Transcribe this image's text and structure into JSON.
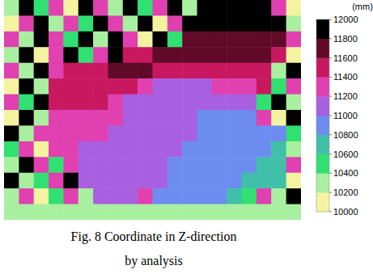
{
  "chart_data": {
    "type": "heatmap",
    "title": "Fig. 8 Coordinate in Z-direction",
    "subtitle": "by analysis",
    "colorbar_label": "(mm)",
    "colorbar_range": [
      10000,
      12000
    ],
    "colorbar_ticks": [
      10000,
      10200,
      10400,
      10600,
      10800,
      11000,
      11200,
      11400,
      11600,
      11800,
      12000
    ],
    "colors": [
      "#f4f4a0",
      "#a8f0a0",
      "#30e070",
      "#40c0a8",
      "#6c8cf0",
      "#a860e0",
      "#e040b0",
      "#c81860",
      "#600a28",
      "#000000"
    ],
    "cells": [
      [
        10300,
        11900,
        10500,
        11300,
        10100,
        11900,
        11300,
        10300,
        11900,
        10500,
        11300,
        11900,
        10300,
        11900,
        11900,
        11900,
        11900,
        11900,
        11300,
        10100
      ],
      [
        10100,
        11300,
        11900,
        10300,
        11300,
        10500,
        11900,
        11300,
        10300,
        11900,
        10100,
        11300,
        11900,
        11900,
        11900,
        11900,
        11900,
        11900,
        11900,
        10300
      ],
      [
        11300,
        10300,
        11900,
        11300,
        10500,
        11900,
        10300,
        11900,
        11300,
        10100,
        11900,
        10500,
        11700,
        11700,
        11700,
        11700,
        11700,
        11700,
        11700,
        11300
      ],
      [
        10300,
        11900,
        10100,
        11300,
        11900,
        10500,
        11300,
        11900,
        11500,
        11500,
        11700,
        11700,
        11700,
        11700,
        11700,
        11700,
        11700,
        11700,
        11500,
        10100
      ],
      [
        11300,
        10300,
        11900,
        11300,
        11500,
        11500,
        11500,
        11700,
        11700,
        11700,
        11500,
        11500,
        11500,
        11500,
        11500,
        11500,
        11500,
        11500,
        10300,
        11900
      ],
      [
        10100,
        11900,
        10300,
        11500,
        11500,
        11500,
        11500,
        11500,
        11500,
        11300,
        11100,
        11100,
        11100,
        11100,
        11300,
        11300,
        11300,
        11500,
        10500,
        11300
      ],
      [
        11300,
        10500,
        11900,
        11500,
        11500,
        11500,
        11500,
        11300,
        11100,
        11100,
        11100,
        11100,
        11100,
        11100,
        11100,
        11100,
        11100,
        10500,
        11900,
        10300
      ],
      [
        10100,
        11900,
        10300,
        11300,
        11300,
        11300,
        11300,
        11300,
        11100,
        11100,
        11100,
        11100,
        11100,
        10900,
        10900,
        10900,
        10900,
        11300,
        10100,
        11900
      ],
      [
        11900,
        10300,
        11300,
        11300,
        11300,
        11300,
        11300,
        11100,
        11100,
        11100,
        11100,
        11100,
        11100,
        10900,
        10900,
        10900,
        10900,
        10900,
        10900,
        10500
      ],
      [
        10500,
        11300,
        10100,
        11300,
        11300,
        11100,
        11100,
        11100,
        11100,
        11100,
        11100,
        11100,
        10900,
        10900,
        10900,
        10900,
        10900,
        10900,
        10700,
        10300
      ],
      [
        10300,
        11900,
        11300,
        10500,
        11300,
        11100,
        11100,
        11100,
        11100,
        11100,
        11100,
        10900,
        10900,
        10900,
        10900,
        10900,
        10900,
        10700,
        10700,
        11300
      ],
      [
        11900,
        10300,
        10500,
        11300,
        11900,
        11100,
        11100,
        11100,
        11100,
        11100,
        11100,
        10900,
        10900,
        10900,
        10900,
        10900,
        10700,
        10700,
        10700,
        10100
      ],
      [
        10300,
        11300,
        10100,
        10500,
        11300,
        10300,
        11100,
        11100,
        11100,
        11300,
        10900,
        10900,
        10900,
        10900,
        10900,
        10700,
        10500,
        11300,
        10300,
        11900
      ],
      [
        10300,
        10300,
        10300,
        10300,
        10300,
        10300,
        10300,
        10300,
        10300,
        10300,
        10300,
        10300,
        10300,
        10300,
        10300,
        10300,
        10300,
        10300,
        10300,
        10300
      ]
    ]
  }
}
